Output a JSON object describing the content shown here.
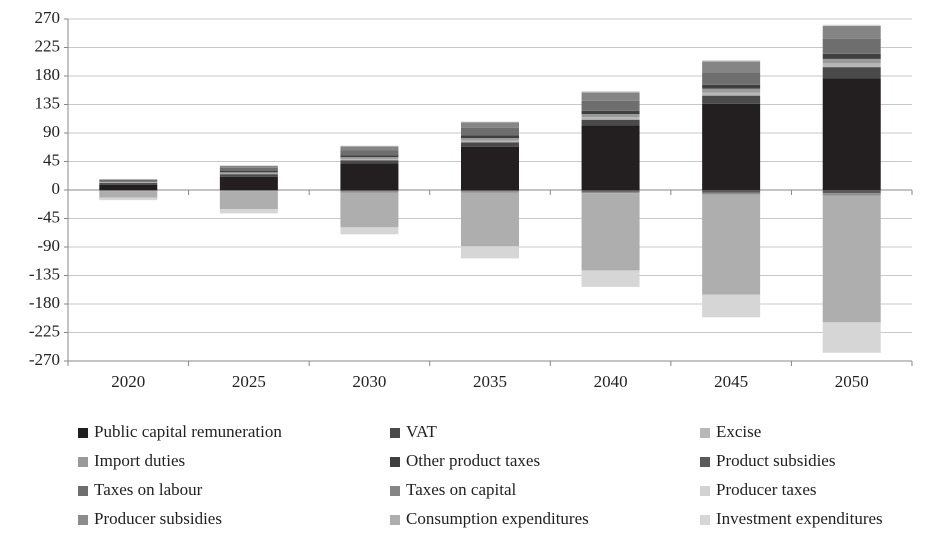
{
  "chart_data": {
    "type": "stacked_bar",
    "categories": [
      "2020",
      "2025",
      "2030",
      "2035",
      "2040",
      "2045",
      "2050"
    ],
    "series": [
      {
        "name": "Public capital remuneration",
        "color": "#231f20",
        "values": [
          8,
          21,
          42,
          68,
          102,
          136,
          176
        ]
      },
      {
        "name": "VAT",
        "color": "#4a4a4a",
        "values": [
          3,
          4,
          5,
          7,
          9,
          13,
          18
        ]
      },
      {
        "name": "Excise",
        "color": "#b8b8b8",
        "values": [
          1,
          1,
          2,
          3,
          4,
          5,
          6
        ]
      },
      {
        "name": "Import duties",
        "color": "#9a9a9a",
        "values": [
          1,
          2,
          3,
          4,
          5,
          6,
          7
        ]
      },
      {
        "name": "Other product taxes",
        "color": "#3f3f3f",
        "values": [
          1,
          2,
          3,
          4,
          5,
          6,
          8
        ]
      },
      {
        "name": "Product subsidies",
        "color": "#5a5a5a",
        "values": [
          -1,
          -1,
          -2,
          -2,
          -3,
          -4,
          -5
        ]
      },
      {
        "name": "Taxes on labour",
        "color": "#6e6e6e",
        "values": [
          2,
          5,
          8,
          12,
          16,
          20,
          24
        ]
      },
      {
        "name": "Taxes on capital",
        "color": "#858585",
        "values": [
          1,
          3,
          6,
          9,
          13,
          17,
          20
        ]
      },
      {
        "name": "Producer taxes",
        "color": "#d2d2d2",
        "values": [
          0.5,
          1,
          1,
          1,
          2,
          2,
          2
        ]
      },
      {
        "name": "Producer subsidies",
        "color": "#8c8c8c",
        "values": [
          -1,
          -1,
          -2,
          -2,
          -2,
          -3,
          -4
        ]
      },
      {
        "name": "Consumption expenditures",
        "color": "#aeaeae",
        "values": [
          -10,
          -28,
          -55,
          -85,
          -122,
          -158,
          -200
        ]
      },
      {
        "name": "Investment expenditures",
        "color": "#d6d6d6",
        "values": [
          -4,
          -7,
          -11,
          -19,
          -26,
          -36,
          -48
        ]
      }
    ],
    "ylim": [
      -270,
      270
    ],
    "yticks": [
      -270,
      -225,
      -180,
      -135,
      -90,
      -45,
      0,
      45,
      90,
      135,
      180,
      225,
      270
    ],
    "grid": true,
    "legend": "bottom"
  }
}
